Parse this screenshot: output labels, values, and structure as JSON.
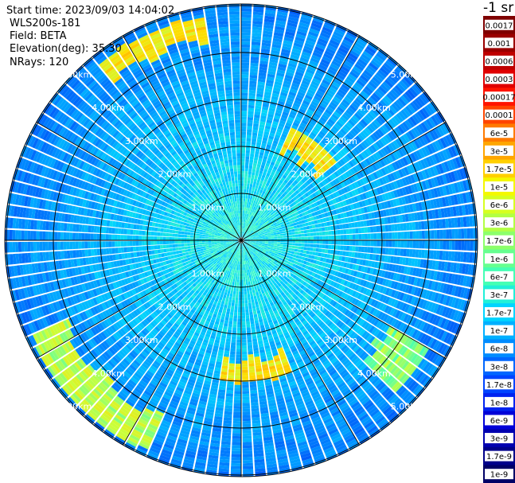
{
  "info": {
    "start_time": "Start time: 2023/09/03 14:04:02",
    "device": "WLS200s-181",
    "field": "Field: BETA",
    "elevation": "Elevation(deg): 35.30",
    "nrays": "NRays: 120"
  },
  "colorbar": {
    "unit_label": "-1 sr",
    "labels": [
      "0.0017",
      "0.001",
      "0.0006",
      "0.0003",
      "0.00017",
      "0.0001",
      "6e-5",
      "3e-5",
      "1.7e-5",
      "1e-5",
      "6e-6",
      "3e-6",
      "1.7e-6",
      "1e-6",
      "6e-7",
      "3e-7",
      "1.7e-7",
      "1e-7",
      "6e-8",
      "3e-8",
      "1.7e-8",
      "1e-8",
      "6e-9",
      "3e-9",
      "1.7e-9",
      "1e-9"
    ],
    "colors": [
      "#7f0000",
      "#9a0000",
      "#bf0000",
      "#e00000",
      "#ff1400",
      "#ff4400",
      "#ff7a00",
      "#ffa600",
      "#ffd000",
      "#f4f800",
      "#d6ff20",
      "#b2ff44",
      "#8cff6a",
      "#66ff90",
      "#44ffb4",
      "#20f0d8",
      "#00d4ff",
      "#00b0ff",
      "#008cff",
      "#0066ff",
      "#0044ff",
      "#0022f0",
      "#0000d8",
      "#0000b0",
      "#00008a",
      "#000066"
    ]
  },
  "chart_data": {
    "type": "heatmap",
    "projection": "polar PPI",
    "field": "BETA",
    "elevation_deg": 35.3,
    "n_rays": 120,
    "range_ring_labels": [
      "1.00km",
      "2.00km",
      "3.00km",
      "4.00km",
      "5.00km"
    ],
    "range_rings_km": [
      1,
      2,
      3,
      4,
      5
    ],
    "spoke_angles_deg": [
      0,
      30,
      60,
      90,
      120,
      150,
      180,
      210,
      240,
      270,
      300,
      330
    ],
    "color_scale": "log",
    "value_range": [
      1e-09,
      0.0017
    ],
    "features": [
      {
        "azimuth_deg": [
          320,
          350
        ],
        "range_km": [
          4.2,
          4.8
        ],
        "value": 3e-05
      },
      {
        "azimuth_deg": [
          25,
          50
        ],
        "range_km": [
          2.0,
          2.6
        ],
        "value": 3e-05
      },
      {
        "azimuth_deg": [
          160,
          190
        ],
        "range_km": [
          2.4,
          3.0
        ],
        "value": 3e-05
      },
      {
        "azimuth_deg": [
          205,
          245
        ],
        "range_km": [
          4.0,
          4.9
        ],
        "value": 1e-05
      },
      {
        "azimuth_deg": [
          120,
          135
        ],
        "range_km": [
          3.5,
          4.6
        ],
        "value": 6e-06
      }
    ]
  }
}
